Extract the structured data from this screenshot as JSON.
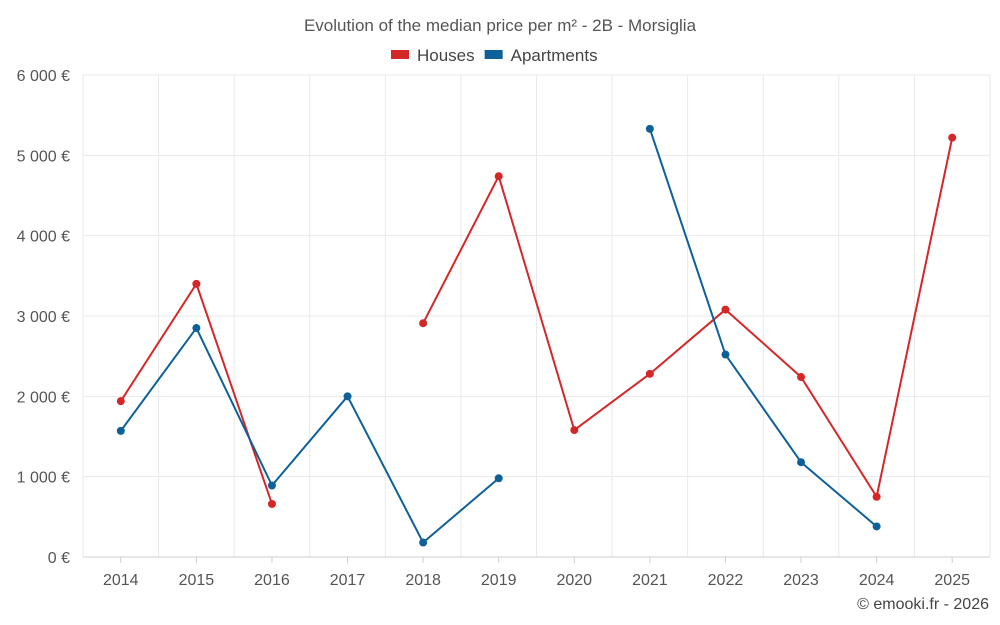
{
  "chart_data": {
    "type": "line",
    "title": "Evolution of the median price per m² - 2B - Morsiglia",
    "categories": [
      "2014",
      "2015",
      "2016",
      "2017",
      "2018",
      "2019",
      "2020",
      "2021",
      "2022",
      "2023",
      "2024",
      "2025"
    ],
    "ylim": [
      0,
      6000
    ],
    "y_ticks": [
      {
        "value": 0,
        "label": "0 €"
      },
      {
        "value": 1000,
        "label": "1 000 €"
      },
      {
        "value": 2000,
        "label": "2 000 €"
      },
      {
        "value": 3000,
        "label": "3 000 €"
      },
      {
        "value": 4000,
        "label": "4 000 €"
      },
      {
        "value": 5000,
        "label": "5 000 €"
      },
      {
        "value": 6000,
        "label": "6 000 €"
      }
    ],
    "grid": true,
    "legend_position": "top-center",
    "series": [
      {
        "name": "Houses",
        "color": "#d62728",
        "values": [
          1940,
          3400,
          660,
          null,
          2910,
          4740,
          1580,
          2280,
          3080,
          2240,
          750,
          5220
        ]
      },
      {
        "name": "Apartments",
        "color": "#0e6198",
        "values": [
          1570,
          2850,
          890,
          2000,
          180,
          980,
          null,
          5330,
          2520,
          1180,
          380,
          null
        ]
      }
    ],
    "credit": "© emooki.fr - 2026"
  }
}
